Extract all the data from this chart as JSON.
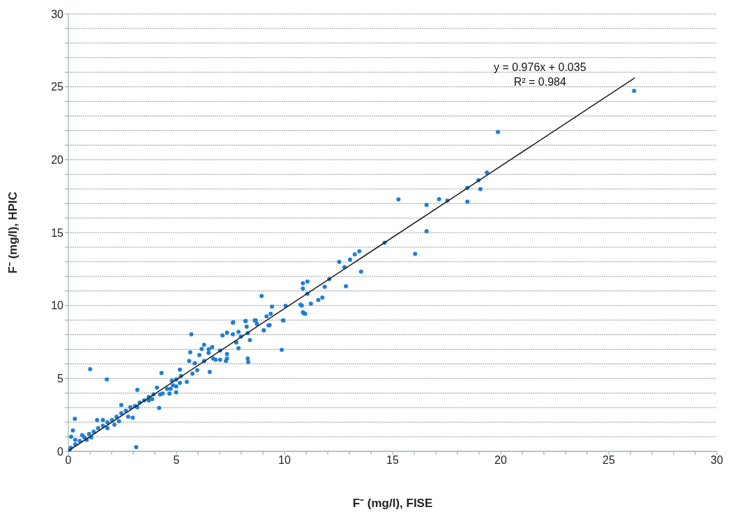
{
  "chart_data": {
    "type": "scatter",
    "xlabel": "F⁻ (mg/l), FISE",
    "ylabel": "F⁻ (mg/l), HPIC",
    "xlim": [
      0,
      30
    ],
    "ylim": [
      0,
      30
    ],
    "xticks": [
      0,
      {
        "value": 1,
        "label": null
      },
      {
        "value": 2,
        "label": null
      },
      {
        "value": 3,
        "label": null
      },
      {
        "value": 4,
        "label": null
      },
      5,
      {
        "value": 6,
        "label": null
      },
      {
        "value": 7,
        "label": null
      },
      {
        "value": 8,
        "label": null
      },
      {
        "value": 9,
        "label": null
      },
      10,
      {
        "value": 11,
        "label": null
      },
      {
        "value": 12,
        "label": null
      },
      {
        "value": 13,
        "label": null
      },
      {
        "value": 14,
        "label": null
      },
      15,
      {
        "value": 16,
        "label": null
      },
      {
        "value": 17,
        "label": null
      },
      {
        "value": 18,
        "label": null
      },
      {
        "value": 19,
        "label": null
      },
      20,
      {
        "value": 21,
        "label": null
      },
      {
        "value": 22,
        "label": null
      },
      {
        "value": 23,
        "label": null
      },
      {
        "value": 24,
        "label": null
      },
      25,
      {
        "value": 26,
        "label": null
      },
      {
        "value": 27,
        "label": null
      },
      {
        "value": 28,
        "label": null
      },
      {
        "value": 29,
        "label": null
      },
      30
    ],
    "yticks": [
      0,
      {
        "value": 1,
        "label": null
      },
      {
        "value": 2,
        "label": null
      },
      {
        "value": 3,
        "label": null
      },
      {
        "value": 4,
        "label": null
      },
      5,
      {
        "value": 6,
        "label": null
      },
      {
        "value": 7,
        "label": null
      },
      {
        "value": 8,
        "label": null
      },
      {
        "value": 9,
        "label": null
      },
      10,
      {
        "value": 11,
        "label": null
      },
      {
        "value": 12,
        "label": null
      },
      {
        "value": 13,
        "label": null
      },
      {
        "value": 14,
        "label": null
      },
      15,
      {
        "value": 16,
        "label": null
      },
      {
        "value": 17,
        "label": null
      },
      {
        "value": 18,
        "label": null
      },
      {
        "value": 19,
        "label": null
      },
      20,
      {
        "value": 21,
        "label": null
      },
      {
        "value": 22,
        "label": null
      },
      {
        "value": 23,
        "label": null
      },
      {
        "value": 24,
        "label": null
      },
      25,
      {
        "value": 26,
        "label": null
      },
      {
        "value": 27,
        "label": null
      },
      {
        "value": 28,
        "label": null
      },
      {
        "value": 29,
        "label": null
      },
      30
    ],
    "grid": "y",
    "annotations": [
      "y = 0.976x + 0.035",
      "R² = 0.984"
    ],
    "series": [
      {
        "color": "#1f7fd6",
        "marker": "circle",
        "x": [
          0.05,
          0.11,
          0.32,
          0.53,
          0.74,
          0.96,
          1.17,
          1.38,
          1.6,
          1.81,
          2.02,
          2.23,
          2.45,
          2.66,
          2.87,
          3.08,
          3.3,
          3.51,
          3.72,
          3.94,
          4.1,
          4.36,
          4.57,
          4.79,
          4.99,
          5.16,
          4.99,
          5.21,
          5.48,
          0.3,
          0.21,
          0.13,
          1.01,
          1.78,
          3.14,
          3.19,
          4.2,
          4.31,
          1.33,
          2.98,
          2.45,
          2.13,
          1.6,
          1.06,
          0.85,
          0.32,
          0.64,
          1.81,
          2.34,
          2.77,
          3.19,
          3.72,
          4.25,
          4.73,
          4.99,
          3.88,
          4.84,
          4.68,
          5.16,
          5.69,
          5.64,
          5.59,
          5.74,
          5.96,
          5.85,
          6.06,
          6.28,
          6.54,
          6.17,
          6.49,
          6.49,
          6.7,
          7.02,
          7.29,
          7.02,
          7.34,
          7.77,
          7.34,
          7.13,
          7.61,
          7.87,
          8.19,
          8.62,
          8.72,
          9.04,
          9.31,
          7.61,
          8.4,
          7.87,
          6.28,
          6.65,
          6.81,
          7.34,
          7.98,
          8.3,
          8.3,
          8.32,
          9.87,
          8.94,
          9.42,
          9.95,
          10.8,
          10.9,
          7.63,
          8.21,
          8.25,
          8.67,
          9.04,
          9.17,
          9.26,
          9.36,
          9.93,
          10.05,
          10.74,
          10.85,
          10.96,
          10.85,
          10.85,
          11.06,
          11.06,
          11.22,
          11.56,
          11.75,
          11.86,
          12.07,
          12.53,
          12.77,
          12.84,
          13.03,
          13.25,
          13.46,
          13.54,
          14.63,
          15.27,
          16.04,
          16.57,
          16.57,
          17.15,
          17.53,
          18.46,
          18.46,
          18.97,
          19.06,
          19.36,
          19.87,
          26.17
        ],
        "values": [
          0.1,
          0.24,
          0.48,
          0.72,
          0.95,
          1.19,
          1.35,
          1.59,
          1.75,
          1.99,
          2.15,
          2.38,
          2.62,
          2.78,
          3.02,
          3.1,
          3.34,
          3.5,
          3.73,
          3.9,
          4.37,
          3.97,
          4.29,
          4.85,
          4.93,
          4.69,
          4.45,
          5.17,
          4.77,
          2.23,
          1.43,
          1.0,
          5.64,
          4.93,
          0.29,
          4.21,
          2.97,
          5.37,
          2.15,
          2.3,
          3.18,
          1.83,
          2.15,
          0.95,
          0.79,
          0.79,
          1.11,
          1.59,
          2.07,
          2.38,
          3.02,
          3.5,
          3.9,
          4.29,
          4.05,
          3.58,
          4.53,
          3.97,
          5.6,
          8.03,
          6.8,
          6.2,
          5.33,
          5.56,
          6.04,
          6.6,
          6.2,
          5.44,
          7.02,
          7.0,
          6.75,
          6.36,
          6.28,
          6.2,
          6.92,
          6.68,
          7.47,
          8.14,
          7.95,
          8.03,
          8.19,
          8.93,
          8.98,
          8.74,
          8.3,
          8.66,
          8.82,
          7.63,
          7.07,
          7.31,
          7.15,
          6.28,
          6.36,
          7.87,
          8.11,
          6.36,
          6.13,
          6.96,
          10.65,
          9.93,
          8.98,
          10.0,
          9.46,
          8.85,
          8.95,
          8.55,
          8.98,
          8.3,
          9.25,
          8.63,
          9.43,
          8.98,
          9.98,
          10.05,
          11.52,
          9.43,
          11.17,
          9.54,
          11.65,
          10.81,
          10.13,
          10.38,
          10.54,
          11.29,
          11.81,
          12.99,
          12.64,
          11.32,
          13.15,
          13.51,
          13.72,
          12.32,
          14.31,
          17.28,
          13.54,
          16.9,
          15.1,
          17.29,
          17.2,
          18.07,
          17.13,
          18.6,
          17.99,
          19.12,
          21.9,
          24.72
        ]
      },
      {
        "type": "line",
        "color": "#1a1a1a",
        "marker": "none",
        "line_style": "solid",
        "x": [
          0,
          26.2
        ],
        "values": [
          0.035,
          25.61
        ]
      }
    ]
  }
}
